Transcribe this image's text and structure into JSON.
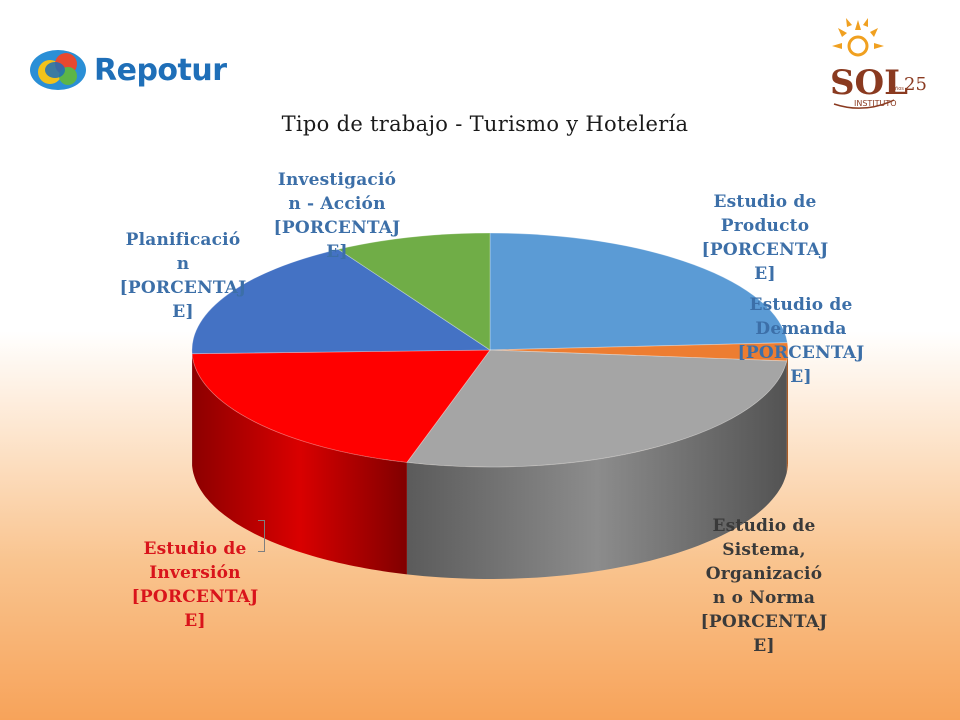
{
  "logos": {
    "left_text": "Repotur",
    "right_text": "SOL",
    "right_sub": "INSTITUTO",
    "right_number": "25",
    "right_tiny": "años"
  },
  "chart_data": {
    "type": "pie",
    "title": "Tipo de trabajo - Turismo y Hotelería",
    "three_d": true,
    "start_angle_deg": 90,
    "direction": "clockwise",
    "slices": [
      {
        "label": "Estudio de Producto",
        "value": 24,
        "color": "#5b9bd5",
        "label_lines": [
          "Estudio de",
          "Producto",
          "[PORCENTAJ",
          "E]"
        ]
      },
      {
        "label": "Estudio de Demanda",
        "value": 2.5,
        "color": "#ed7d31",
        "label_lines": [
          "Estudio de",
          "Demanda",
          "[PORCENTAJ",
          "E]"
        ]
      },
      {
        "label": "Estudio de Sistema, Organización o Norma",
        "value": 28,
        "color": "#a5a5a5",
        "label_lines": [
          "Estudio de",
          "Sistema,",
          "Organizació",
          "n o Norma",
          "[PORCENTAJ",
          "E]"
        ]
      },
      {
        "label": "Estudio de Inversión",
        "value": 20,
        "color": "#ff0000",
        "label_lines": [
          "Estudio de",
          "Inversión",
          "[PORCENTAJ",
          "E]"
        ]
      },
      {
        "label": "Planificación",
        "value": 17,
        "color": "#4472c4",
        "label_lines": [
          "Planificació",
          "n",
          "[PORCENTAJ",
          "E]"
        ]
      },
      {
        "label": "Investigación - Acción",
        "value": 8.5,
        "color": "#70ad47",
        "label_lines": [
          "Investigació",
          "n - Acción",
          "[PORCENTAJ",
          "E]"
        ]
      }
    ]
  }
}
